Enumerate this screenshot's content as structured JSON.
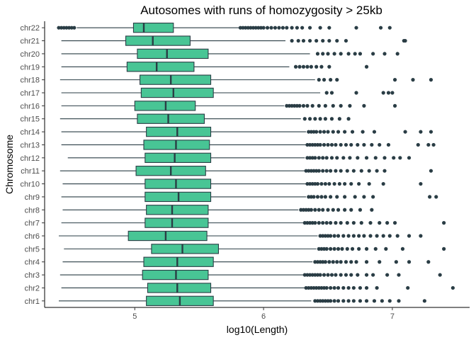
{
  "chart_data": {
    "type": "boxplot",
    "orientation": "horizontal",
    "title": "Autosomes with runs of homozygosity > 25kb",
    "xlabel": "log10(Length)",
    "ylabel": "Chromosome",
    "xlim": [
      4.3,
      7.6
    ],
    "x_ticks": [
      5,
      6,
      7
    ],
    "grid": false,
    "legend": "none",
    "box_color": "#48c595",
    "line_color": "#2a3d45",
    "outlier_color": "#2a3d45",
    "series": [
      {
        "category": "chr1",
        "whisker_low": 4.41,
        "q1": 5.09,
        "median": 5.35,
        "q3": 5.61,
        "whisker_high": 6.37,
        "outliers": [
          6.4,
          6.42,
          6.44,
          6.46,
          6.48,
          6.5,
          6.52,
          6.55,
          6.58,
          6.62,
          6.66,
          6.7,
          6.75,
          6.8,
          6.86,
          6.92,
          6.98,
          7.05,
          7.25
        ]
      },
      {
        "category": "chr2",
        "whisker_low": 4.43,
        "q1": 5.1,
        "median": 5.33,
        "q3": 5.59,
        "whisker_high": 6.32,
        "outliers": [
          6.33,
          6.35,
          6.37,
          6.39,
          6.41,
          6.43,
          6.45,
          6.47,
          6.49,
          6.52,
          6.55,
          6.58,
          6.62,
          6.66,
          6.7,
          6.75,
          6.8,
          6.88,
          7.12,
          7.47
        ]
      },
      {
        "category": "chr3",
        "whisker_low": 4.42,
        "q1": 5.06,
        "median": 5.32,
        "q3": 5.57,
        "whisker_high": 6.31,
        "outliers": [
          6.32,
          6.34,
          6.36,
          6.38,
          6.4,
          6.42,
          6.44,
          6.47,
          6.5,
          6.53,
          6.56,
          6.6,
          6.64,
          6.68,
          6.73,
          6.8,
          6.85,
          6.96,
          7.05,
          7.37
        ]
      },
      {
        "category": "chr4",
        "whisker_low": 4.44,
        "q1": 5.07,
        "median": 5.33,
        "q3": 5.61,
        "whisker_high": 6.38,
        "outliers": [
          6.4,
          6.42,
          6.44,
          6.46,
          6.48,
          6.51,
          6.54,
          6.57,
          6.6,
          6.64,
          6.68,
          6.72,
          6.8,
          6.9,
          7.03,
          7.13,
          7.28
        ]
      },
      {
        "category": "chr5",
        "whisker_low": 4.45,
        "q1": 5.13,
        "median": 5.37,
        "q3": 5.65,
        "whisker_high": 6.41,
        "outliers": [
          6.43,
          6.45,
          6.47,
          6.49,
          6.52,
          6.55,
          6.58,
          6.61,
          6.65,
          6.69,
          6.74,
          6.8,
          6.87,
          6.95,
          7.08,
          7.4
        ]
      },
      {
        "category": "chr6",
        "whisker_low": 4.41,
        "q1": 4.95,
        "median": 5.24,
        "q3": 5.56,
        "whisker_high": 6.42,
        "outliers": [
          6.44,
          6.46,
          6.48,
          6.5,
          6.52,
          6.55,
          6.58,
          6.62,
          6.66,
          6.7,
          6.74,
          6.78,
          6.83,
          6.88,
          6.93,
          6.98,
          7.04,
          7.13,
          7.22
        ]
      },
      {
        "category": "chr7",
        "whisker_low": 4.43,
        "q1": 5.08,
        "median": 5.29,
        "q3": 5.57,
        "whisker_high": 6.31,
        "outliers": [
          6.32,
          6.34,
          6.36,
          6.38,
          6.4,
          6.43,
          6.46,
          6.49,
          6.52,
          6.56,
          6.6,
          6.65,
          6.7,
          6.76,
          6.83,
          6.9,
          6.96,
          7.02,
          7.4
        ]
      },
      {
        "category": "chr8",
        "whisker_low": 4.44,
        "q1": 5.09,
        "median": 5.29,
        "q3": 5.57,
        "whisker_high": 6.27,
        "outliers": [
          6.29,
          6.31,
          6.33,
          6.35,
          6.37,
          6.4,
          6.43,
          6.46,
          6.5,
          6.54,
          6.58,
          6.63,
          6.68,
          6.75,
          6.84
        ]
      },
      {
        "category": "chr9",
        "whisker_low": 4.43,
        "q1": 5.08,
        "median": 5.34,
        "q3": 5.59,
        "whisker_high": 6.33,
        "outliers": [
          6.35,
          6.37,
          6.39,
          6.42,
          6.45,
          6.48,
          6.52,
          6.57,
          6.63,
          6.71,
          6.78,
          6.85,
          7.29,
          7.34
        ]
      },
      {
        "category": "chr10",
        "whisker_low": 4.44,
        "q1": 5.08,
        "median": 5.32,
        "q3": 5.59,
        "whisker_high": 6.33,
        "outliers": [
          6.34,
          6.36,
          6.38,
          6.4,
          6.42,
          6.45,
          6.48,
          6.51,
          6.55,
          6.59,
          6.63,
          6.68,
          6.74,
          6.82,
          6.93,
          7.22
        ]
      },
      {
        "category": "chr11",
        "whisker_low": 4.42,
        "q1": 5.01,
        "median": 5.28,
        "q3": 5.55,
        "whisker_high": 6.32,
        "outliers": [
          6.33,
          6.35,
          6.37,
          6.39,
          6.41,
          6.43,
          6.46,
          6.49,
          6.52,
          6.56,
          6.6,
          6.65,
          6.7,
          6.76,
          6.82,
          6.88,
          6.94,
          7.3
        ]
      },
      {
        "category": "chr12",
        "whisker_low": 4.48,
        "q1": 5.08,
        "median": 5.31,
        "q3": 5.59,
        "whisker_high": 6.32,
        "outliers": [
          6.34,
          6.36,
          6.38,
          6.4,
          6.43,
          6.46,
          6.49,
          6.53,
          6.57,
          6.62,
          6.67,
          6.73,
          6.8,
          6.87,
          6.94,
          7.01,
          7.06,
          7.13
        ]
      },
      {
        "category": "chr13",
        "whisker_low": 4.43,
        "q1": 5.07,
        "median": 5.32,
        "q3": 5.58,
        "whisker_high": 6.33,
        "outliers": [
          6.34,
          6.36,
          6.38,
          6.4,
          6.42,
          6.44,
          6.47,
          6.5,
          6.53,
          6.56,
          6.6,
          6.64,
          6.68,
          6.73,
          6.78,
          6.84,
          6.9,
          6.97,
          7.2,
          7.28,
          7.32
        ]
      },
      {
        "category": "chr14",
        "whisker_low": 4.43,
        "q1": 5.09,
        "median": 5.33,
        "q3": 5.59,
        "whisker_high": 6.33,
        "outliers": [
          6.35,
          6.37,
          6.39,
          6.41,
          6.44,
          6.47,
          6.5,
          6.54,
          6.58,
          6.63,
          6.69,
          6.77,
          6.86,
          7.1,
          7.22,
          7.3
        ]
      },
      {
        "category": "chr15",
        "whisker_low": 4.42,
        "q1": 5.02,
        "median": 5.26,
        "q3": 5.54,
        "whisker_high": 6.29,
        "outliers": [
          6.32,
          6.36,
          6.4,
          6.44,
          6.48,
          6.53,
          6.59,
          6.66
        ]
      },
      {
        "category": "chr16",
        "whisker_low": 4.43,
        "q1": 5.0,
        "median": 5.24,
        "q3": 5.47,
        "whisker_high": 6.16,
        "outliers": [
          6.18,
          6.2,
          6.22,
          6.24,
          6.26,
          6.28,
          6.31,
          6.34,
          6.38,
          6.43,
          6.48,
          6.54,
          6.6,
          6.67,
          6.78,
          7.02
        ]
      },
      {
        "category": "chr17",
        "whisker_low": 4.43,
        "q1": 5.05,
        "median": 5.3,
        "q3": 5.61,
        "whisker_high": 6.44,
        "outliers": [
          6.49,
          6.53,
          6.72,
          6.93,
          6.97,
          7.0
        ]
      },
      {
        "category": "chr18",
        "whisker_low": 4.42,
        "q1": 5.04,
        "median": 5.28,
        "q3": 5.59,
        "whisker_high": 6.4,
        "outliers": [
          6.43,
          6.47,
          6.52,
          6.57,
          7.02,
          7.16,
          7.3
        ]
      },
      {
        "category": "chr19",
        "whisker_low": 4.43,
        "q1": 4.94,
        "median": 5.17,
        "q3": 5.46,
        "whisker_high": 6.2,
        "outliers": [
          6.25,
          6.28,
          6.31,
          6.34,
          6.37,
          6.41,
          6.45,
          6.51,
          6.8
        ]
      },
      {
        "category": "chr20",
        "whisker_low": 4.43,
        "q1": 5.02,
        "median": 5.25,
        "q3": 5.57,
        "whisker_high": 6.36,
        "outliers": [
          6.42,
          6.46,
          6.5,
          6.55,
          6.6,
          6.66,
          6.71,
          6.75,
          6.85,
          6.94,
          7.04
        ]
      },
      {
        "category": "chr21",
        "whisker_low": 4.43,
        "q1": 4.93,
        "median": 5.14,
        "q3": 5.43,
        "whisker_high": 6.17,
        "outliers": [
          6.22,
          6.27,
          6.31,
          6.36,
          6.41,
          6.46,
          6.51,
          6.57,
          6.64,
          7.09,
          7.1
        ]
      },
      {
        "category": "chr22",
        "whisker_low": 4.55,
        "q1": 4.99,
        "median": 5.07,
        "q3": 5.3,
        "whisker_high": 5.81,
        "outliers": [
          4.41,
          4.43,
          4.45,
          4.47,
          4.49,
          4.51,
          4.53,
          5.82,
          5.84,
          5.86,
          5.88,
          5.9,
          5.92,
          5.94,
          5.96,
          5.98,
          6.0,
          6.03,
          6.06,
          6.09,
          6.12,
          6.15,
          6.18,
          6.22,
          6.26,
          6.3,
          6.36,
          6.44,
          6.51,
          6.72,
          6.91,
          6.98
        ]
      }
    ]
  }
}
